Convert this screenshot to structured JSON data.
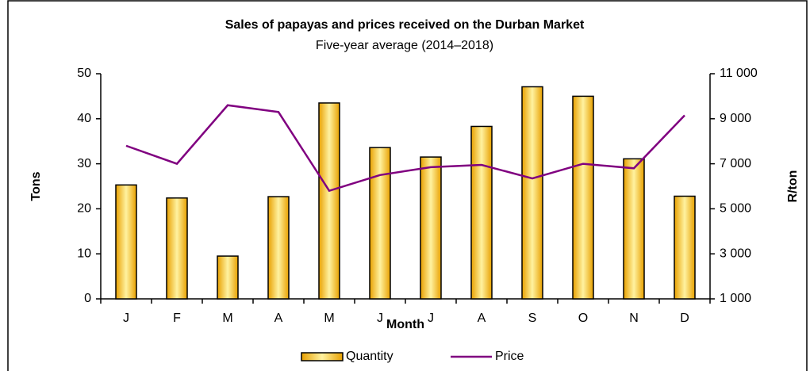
{
  "chart_data": {
    "type": "bar",
    "title": "Sales of papayas and prices received on the Durban Market",
    "subtitle": "Five-year  average (2014–2018)",
    "x_label": "Month",
    "y_label": "Tons",
    "y2_label": "R/ton",
    "categories": [
      "J",
      "F",
      "M",
      "A",
      "M",
      "J",
      "J",
      "A",
      "S",
      "O",
      "N",
      "D"
    ],
    "series": [
      {
        "name": "Quantity",
        "type": "bar",
        "color": "#FFC000",
        "values": [
          25.3,
          22.4,
          9.5,
          22.7,
          43.5,
          33.6,
          31.5,
          38.3,
          47.1,
          45.0,
          31.1,
          22.8
        ]
      },
      {
        "name": "Price",
        "type": "line",
        "axis": "y2",
        "color": "#800080",
        "values": [
          7800,
          7000,
          9600,
          9300,
          5800,
          6500,
          6850,
          6950,
          6350,
          7000,
          6800,
          9150
        ]
      }
    ],
    "ylim": [
      0,
      50
    ],
    "yticks": [
      0,
      10,
      20,
      30,
      40,
      50
    ],
    "y2lim": [
      1000,
      11000
    ],
    "y2ticks": [
      {
        "value": 1000,
        "label": "1 000"
      },
      {
        "value": 3000,
        "label": "3 000"
      },
      {
        "value": 5000,
        "label": "5 000"
      },
      {
        "value": 7000,
        "label": "7 000"
      },
      {
        "value": 9000,
        "label": "9 000"
      },
      {
        "value": 11000,
        "label": "11 000"
      }
    ],
    "legend": "bottom"
  }
}
